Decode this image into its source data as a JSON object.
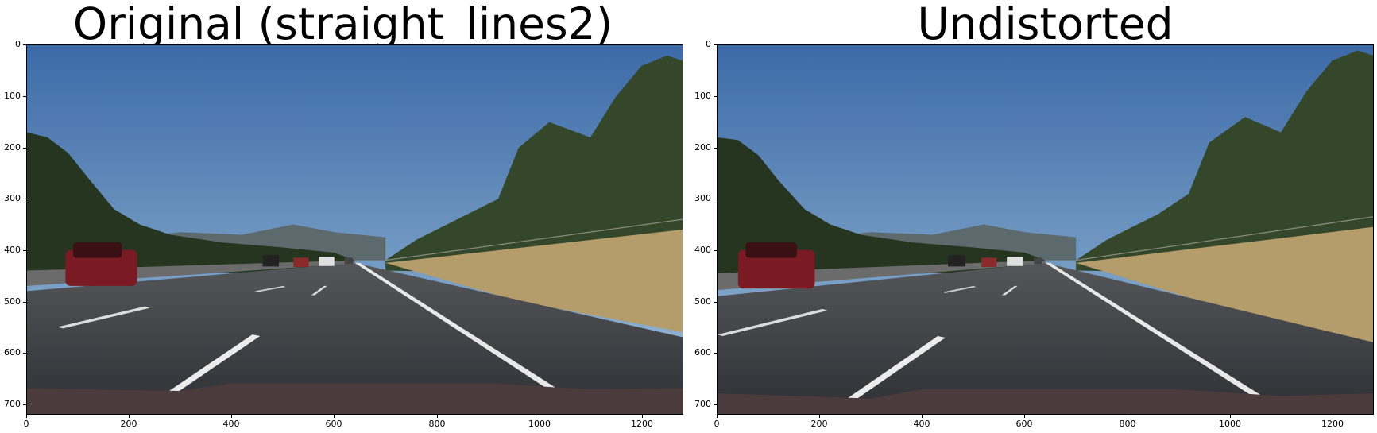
{
  "panels": [
    {
      "id": "original",
      "title": "Original (straight_lines2)",
      "image": "road-photo",
      "x_ticks": [
        "0",
        "200",
        "400",
        "600",
        "800",
        "1000",
        "1200"
      ],
      "y_ticks": [
        "0",
        "100",
        "200",
        "300",
        "400",
        "500",
        "600",
        "700"
      ]
    },
    {
      "id": "undistorted",
      "title": "Undistorted",
      "image": "road-photo",
      "x_ticks": [
        "0",
        "200",
        "400",
        "600",
        "800",
        "1000",
        "1200"
      ],
      "y_ticks": [
        "0",
        "100",
        "200",
        "300",
        "400",
        "500",
        "600",
        "700"
      ]
    }
  ],
  "colors": {
    "sky_top": "#3f6fae",
    "sky_horizon": "#a9c6dd",
    "trees": "#2b3a22",
    "asphalt": "#3a3b40",
    "lane_marking": "#e8e8e8",
    "grass": "#b59d6d",
    "car_red": "#7a1a22"
  }
}
